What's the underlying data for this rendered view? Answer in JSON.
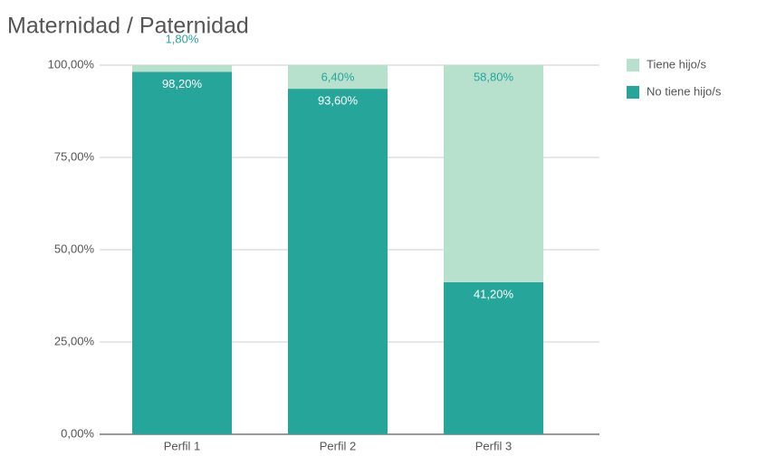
{
  "chart_data": {
    "type": "stacked_bar",
    "title": "Maternidad / Paternidad",
    "categories": [
      "Perfil 1",
      "Perfil 2",
      "Perfil 3"
    ],
    "series": [
      {
        "name": "Tiene hijo/s",
        "color": "#b7e1cd",
        "values": [
          1.8,
          6.4,
          58.8
        ],
        "value_labels": [
          "1,80%",
          "6,40%",
          "58,80%"
        ]
      },
      {
        "name": "No tiene hijo/s",
        "color": "#26a69a",
        "values": [
          98.2,
          93.6,
          41.2
        ],
        "value_labels": [
          "98,20%",
          "93,60%",
          "41,20%"
        ]
      }
    ],
    "ylim": [
      0,
      100
    ],
    "yticks": [
      {
        "value": 0,
        "label": "0,00%"
      },
      {
        "value": 25,
        "label": "25,00%"
      },
      {
        "value": 50,
        "label": "50,00%"
      },
      {
        "value": 75,
        "label": "75,00%"
      },
      {
        "value": 100,
        "label": "100,00%"
      }
    ],
    "grid": true,
    "legend": "right"
  }
}
